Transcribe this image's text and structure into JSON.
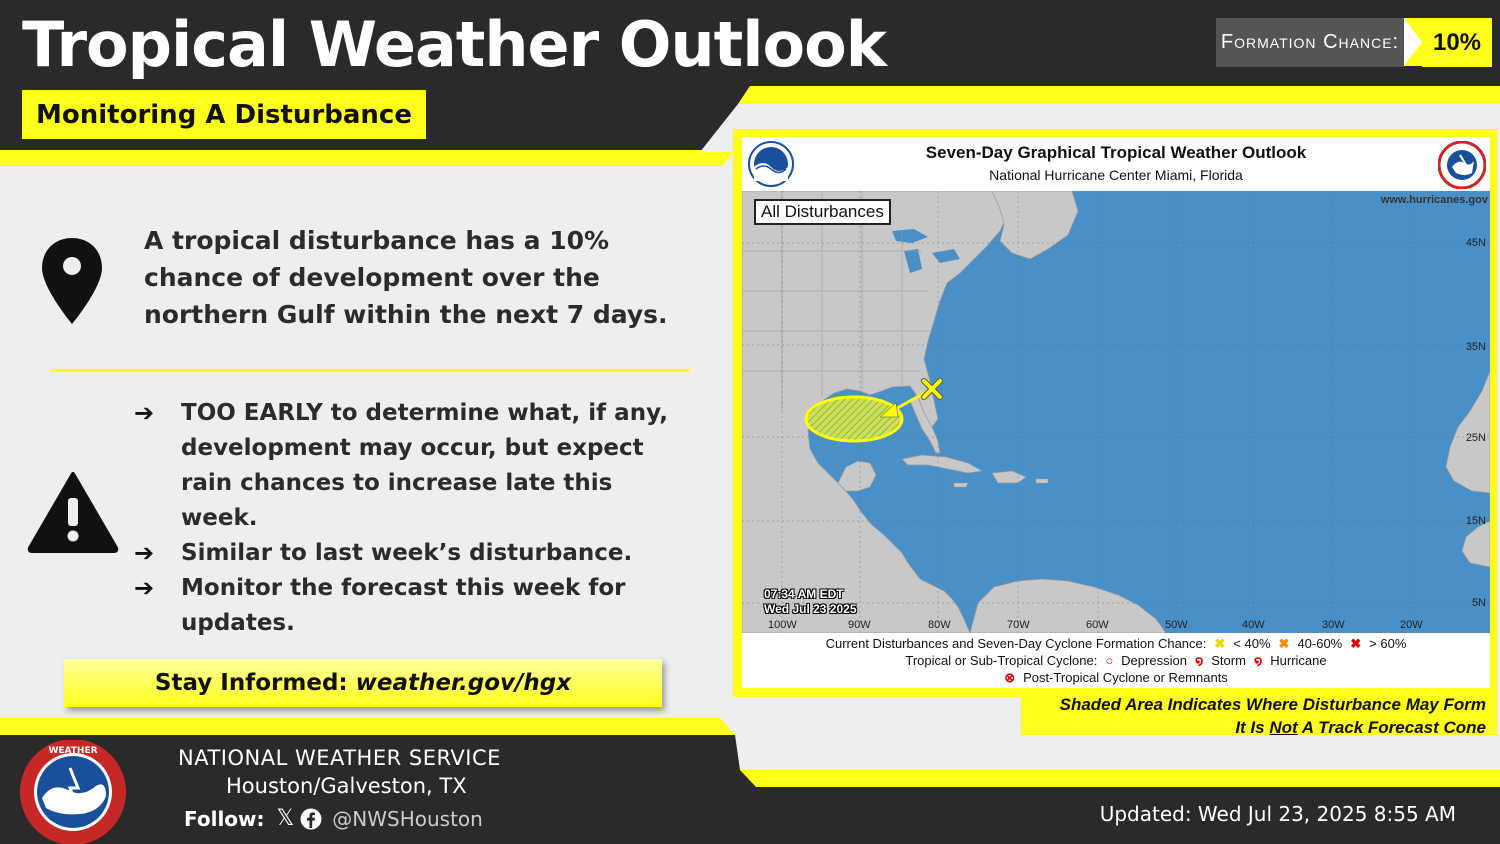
{
  "header": {
    "title": "Tropical Weather Outlook",
    "subtitle": "Monitoring A Disturbance",
    "formation_chance_label": "Formation Chance:",
    "formation_chance_value": "10%"
  },
  "summary": {
    "text": "A tropical disturbance has a 10% chance of development over the northern Gulf within the next 7 days."
  },
  "bullets": [
    {
      "arrow": "➔",
      "text": "TOO EARLY to determine what, if any, development may occur, but expect rain chances to increase late this week."
    },
    {
      "arrow": "➔",
      "text": "Similar to last week’s disturbance."
    },
    {
      "arrow": "➔",
      "text": "Monitor the forecast this week for updates."
    }
  ],
  "stay_informed": {
    "label": "Stay Informed:",
    "link": "weather.gov/hgx"
  },
  "map": {
    "title": "Seven-Day Graphical Tropical Weather Outlook",
    "subtitle": "National Hurricane Center  Miami, Florida",
    "tab": "All Disturbances",
    "url": "www.hurricanes.gov",
    "time_line1": "07:34 AM EDT",
    "time_line2": "Wed Jul 23 2025",
    "lat_labels": [
      "45N",
      "35N",
      "25N",
      "15N",
      "5N"
    ],
    "lon_labels": [
      "100W",
      "90W",
      "80W",
      "70W",
      "60W",
      "50W",
      "40W",
      "30W",
      "20W"
    ],
    "legend": {
      "row1_label": "Current Disturbances and Seven-Day Cyclone Formation Chance:",
      "low": "< 40%",
      "mid": "40-60%",
      "high": "> 60%",
      "row2_label": "Tropical or Sub-Tropical Cyclone:",
      "depression": "Depression",
      "storm": "Storm",
      "hurricane": "Hurricane",
      "remnants": "Post-Tropical Cyclone or Remnants"
    },
    "caption_line1": "Shaded Area Indicates Where Disturbance May Form",
    "caption_line2_pre": "It Is ",
    "caption_line2_not": "Not",
    "caption_line2_post": " A Track Forecast Cone"
  },
  "footer": {
    "org": "NATIONAL WEATHER SERVICE",
    "location": "Houston/Galveston, TX",
    "follow": "Follow:",
    "x_glyph": "𝕏",
    "handle": "@NWSHouston",
    "updated": "Updated: Wed Jul 23, 2025 8:55 AM"
  },
  "colors": {
    "accent_yellow": "#ffff1a",
    "header_dark": "#2a2a2a",
    "ocean": "#4a90c8",
    "land": "#c8c8c8",
    "disturbance_low": "#ffff00"
  }
}
